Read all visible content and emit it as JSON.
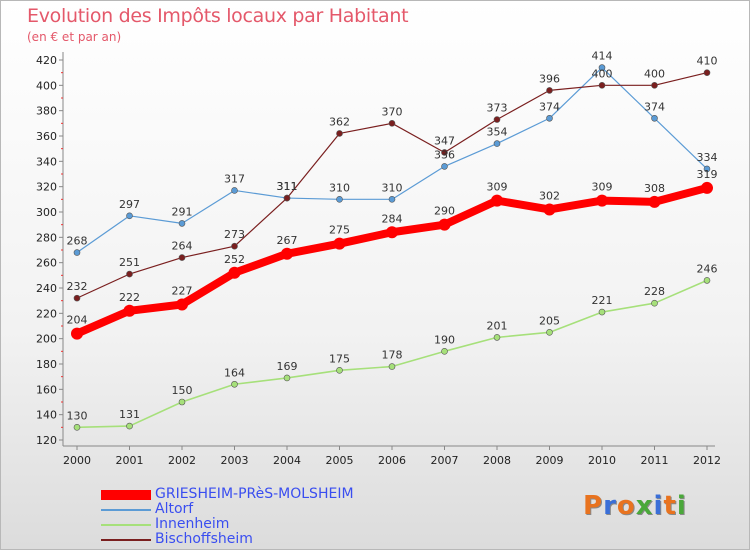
{
  "header": {
    "title": "Evolution des Impôts locaux par Habitant",
    "subtitle": "(en € et par an)"
  },
  "logo": {
    "text": "Proxiti",
    "colors": [
      "#e8731f",
      "#3a6fd8",
      "#e8731f",
      "#4aa83a",
      "#3a6fd8",
      "#e8731f",
      "#4aa83a"
    ]
  },
  "chart_data": {
    "type": "line",
    "x": [
      2000,
      2001,
      2002,
      2003,
      2004,
      2005,
      2006,
      2007,
      2008,
      2009,
      2010,
      2011,
      2012
    ],
    "ylim": [
      120,
      420
    ],
    "yticks": [
      120,
      140,
      160,
      180,
      200,
      220,
      240,
      260,
      280,
      300,
      320,
      340,
      360,
      380,
      400,
      420
    ],
    "grid": false,
    "legend": "bottom-left",
    "series": [
      {
        "name": "GRIESHEIM-PRèS-MOLSHEIM",
        "color": "#ff0000",
        "values": [
          204,
          222,
          227,
          252,
          267,
          275,
          284,
          290,
          309,
          302,
          309,
          308,
          319
        ]
      },
      {
        "name": "Altorf",
        "color": "#5b9bd5",
        "values": [
          268,
          297,
          291,
          317,
          311,
          310,
          310,
          336,
          354,
          374,
          414,
          374,
          334
        ]
      },
      {
        "name": "Innenheim",
        "color": "#a6e07a",
        "values": [
          130,
          131,
          150,
          164,
          169,
          175,
          178,
          190,
          201,
          205,
          221,
          228,
          246
        ]
      },
      {
        "name": "Bischoffsheim",
        "color": "#7a1f1f",
        "values": [
          232,
          251,
          264,
          273,
          311,
          362,
          370,
          347,
          373,
          396,
          400,
          400,
          410
        ]
      }
    ]
  }
}
